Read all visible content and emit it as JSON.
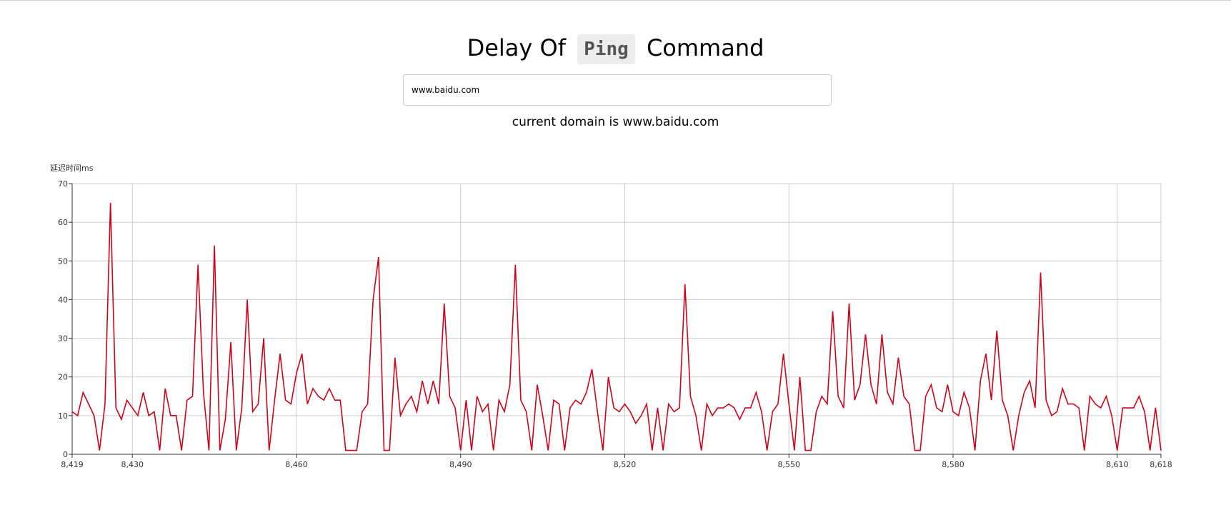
{
  "header": {
    "title_prefix": "Delay Of",
    "title_code": "Ping",
    "title_suffix": "Command"
  },
  "domain_input": {
    "value": "www.baidu.com"
  },
  "status": {
    "text": "current domain is www.baidu.com"
  },
  "colors": {
    "line": "#d0021b",
    "grid": "#cccccc",
    "axis": "#333333"
  },
  "chart_data": {
    "type": "line",
    "title": "",
    "xlabel": "",
    "ylabel": "延迟时间ms",
    "xlim": [
      8419,
      8618
    ],
    "ylim": [
      0,
      70
    ],
    "grid": true,
    "x_ticks": [
      "8,419",
      "8,430",
      "8,460",
      "8,490",
      "8,520",
      "8,550",
      "8,580",
      "8,610",
      "8,618"
    ],
    "y_ticks": [
      "0",
      "10",
      "20",
      "30",
      "40",
      "50",
      "60",
      "70"
    ],
    "series": [
      {
        "name": "",
        "x_start": 8419,
        "x_step": 1,
        "values": [
          11,
          10,
          16,
          13,
          10,
          1,
          13,
          65,
          12,
          9,
          14,
          12,
          10,
          16,
          10,
          11,
          1,
          17,
          10,
          10,
          1,
          14,
          15,
          49,
          16,
          1,
          54,
          1,
          9,
          29,
          1,
          12,
          40,
          11,
          13,
          30,
          1,
          14,
          26,
          14,
          13,
          21,
          26,
          13,
          17,
          15,
          14,
          17,
          14,
          14,
          1,
          1,
          1,
          11,
          13,
          40,
          51,
          1,
          1,
          25,
          10,
          13,
          15,
          11,
          19,
          13,
          19,
          13,
          39,
          15,
          12,
          1,
          14,
          1,
          15,
          11,
          13,
          1,
          14,
          11,
          18,
          49,
          14,
          11,
          1,
          18,
          10,
          1,
          14,
          13,
          1,
          12,
          14,
          13,
          16,
          22,
          11,
          1,
          20,
          12,
          11,
          13,
          11,
          8,
          10,
          13,
          1,
          12,
          1,
          13,
          11,
          12,
          44,
          15,
          10,
          1,
          13,
          10,
          12,
          12,
          13,
          12,
          9,
          12,
          12,
          16,
          11,
          1,
          11,
          13,
          26,
          13,
          1,
          20,
          1,
          1,
          11,
          15,
          13,
          37,
          15,
          12,
          39,
          14,
          18,
          31,
          18,
          13,
          31,
          16,
          13,
          25,
          15,
          13,
          1,
          1,
          15,
          18,
          12,
          11,
          18,
          11,
          10,
          16,
          12,
          1,
          19,
          26,
          14,
          32,
          14,
          10,
          1,
          10,
          16,
          19,
          12,
          47,
          14,
          10,
          11,
          17,
          13,
          13,
          12,
          1,
          15,
          13,
          12,
          15,
          10,
          1,
          12,
          12,
          12,
          15,
          11,
          1,
          12,
          1
        ]
      }
    ]
  }
}
